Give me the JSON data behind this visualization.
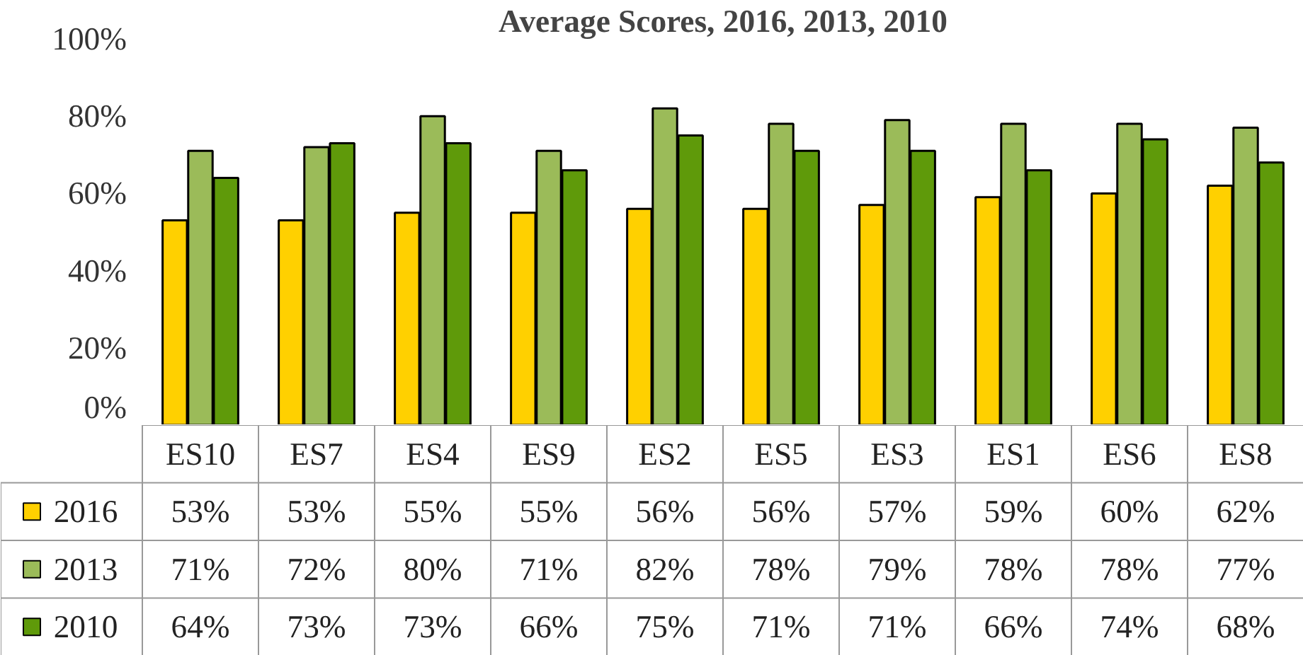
{
  "chart_data": {
    "type": "bar",
    "title": "Average Scores, 2016, 2013, 2010",
    "categories": [
      "ES10",
      "ES7",
      "ES4",
      "ES9",
      "ES2",
      "ES5",
      "ES3",
      "ES1",
      "ES6",
      "ES8"
    ],
    "series": [
      {
        "name": "2016",
        "color": "#ffd000",
        "values": [
          53,
          53,
          55,
          55,
          56,
          56,
          57,
          59,
          60,
          62
        ],
        "value_labels": [
          "53%",
          "53%",
          "55%",
          "55%",
          "56%",
          "56%",
          "57%",
          "59%",
          "60%",
          "62%"
        ]
      },
      {
        "name": "2013",
        "color": "#9bbb59",
        "values": [
          71,
          72,
          80,
          71,
          82,
          78,
          79,
          78,
          78,
          77
        ],
        "value_labels": [
          "71%",
          "72%",
          "80%",
          "71%",
          "82%",
          "78%",
          "79%",
          "78%",
          "78%",
          "77%"
        ]
      },
      {
        "name": "2010",
        "color": "#5f9a0a",
        "values": [
          64,
          73,
          73,
          66,
          75,
          71,
          71,
          66,
          74,
          68
        ],
        "value_labels": [
          "64%",
          "73%",
          "73%",
          "66%",
          "75%",
          "71%",
          "71%",
          "66%",
          "74%",
          "68%"
        ]
      }
    ],
    "ylim": [
      0,
      100
    ],
    "yticks": [
      {
        "value": 0,
        "label": "0%"
      },
      {
        "value": 20,
        "label": "20%"
      },
      {
        "value": 40,
        "label": "40%"
      },
      {
        "value": 60,
        "label": "60%"
      },
      {
        "value": 80,
        "label": "80%"
      },
      {
        "value": 100,
        "label": "100%"
      }
    ],
    "legend": "bottom"
  }
}
